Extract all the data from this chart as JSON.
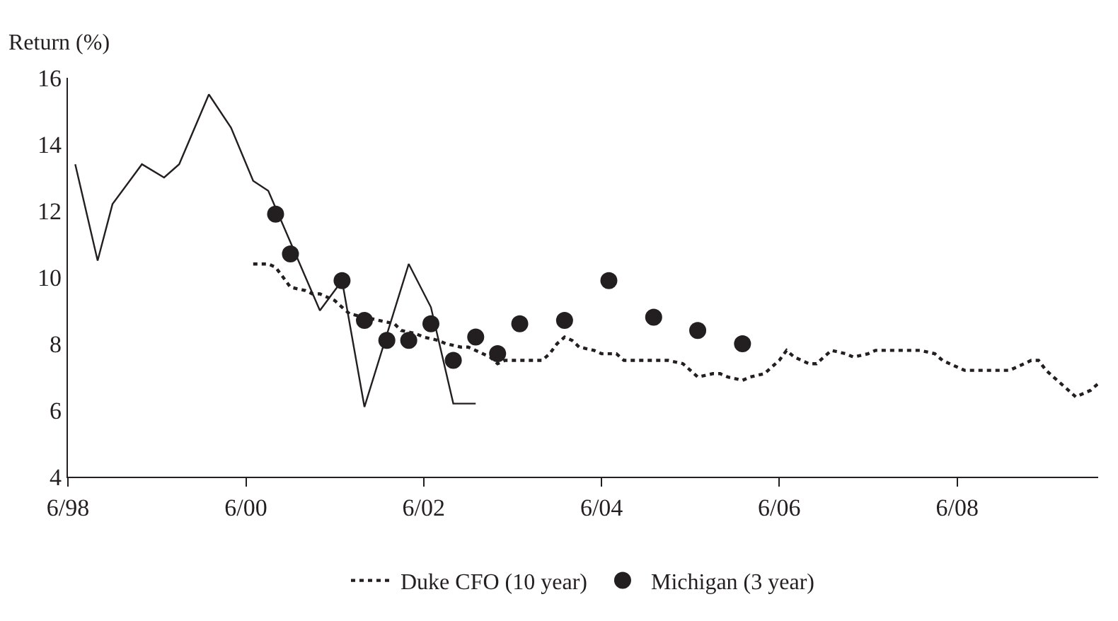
{
  "chart_data": {
    "type": "line",
    "ylabel": "Return (%)",
    "xlim": [
      "1998-06",
      "2010-01"
    ],
    "ylim": [
      4,
      16
    ],
    "xticks": [
      {
        "value": "1998-06",
        "label": "6/98"
      },
      {
        "value": "2000-06",
        "label": "6/00"
      },
      {
        "value": "2002-06",
        "label": "6/02"
      },
      {
        "value": "2004-06",
        "label": "6/04"
      },
      {
        "value": "2006-06",
        "label": "6/06"
      },
      {
        "value": "2008-06",
        "label": "6/08"
      }
    ],
    "yticks": [
      4,
      6,
      8,
      10,
      12,
      14,
      16
    ],
    "legend": "bottom",
    "series": [
      {
        "line_style": "solid",
        "color": "#231f20",
        "x": [
          "1998-07",
          "1998-10",
          "1998-12",
          "1999-04",
          "1999-07",
          "1999-09",
          "2000-01",
          "2000-04",
          "2000-07",
          "2000-09",
          "2001-04",
          "2001-07",
          "2001-10",
          "2002-04",
          "2002-07",
          "2002-10",
          "2003-01"
        ],
        "values": [
          13.4,
          10.5,
          12.2,
          13.4,
          13.0,
          13.4,
          15.5,
          14.5,
          12.9,
          12.6,
          9.0,
          9.9,
          6.1,
          10.4,
          9.1,
          6.2,
          6.2
        ]
      },
      {
        "line_style": "dotted",
        "name": "Duke CFO (10 year)",
        "color": "#231f20",
        "x": [
          "2000-07",
          "2000-09",
          "2000-10",
          "2000-11",
          "2000-12",
          "2001-02",
          "2001-03",
          "2001-04",
          "2001-06",
          "2001-07",
          "2001-08",
          "2001-10",
          "2001-12",
          "2002-02",
          "2002-03",
          "2002-05",
          "2002-06",
          "2002-08",
          "2002-09",
          "2002-11",
          "2002-12",
          "2003-01",
          "2003-03",
          "2003-04",
          "2003-05",
          "2003-07",
          "2003-08",
          "2003-10",
          "2003-11",
          "2003-12",
          "2004-01",
          "2004-02",
          "2004-03",
          "2004-05",
          "2004-06",
          "2004-08",
          "2004-09",
          "2004-11",
          "2004-12",
          "2005-02",
          "2005-03",
          "2005-05",
          "2005-06",
          "2005-07",
          "2005-09",
          "2005-10",
          "2005-11",
          "2006-01",
          "2006-02",
          "2006-04",
          "2006-05",
          "2006-06",
          "2006-07",
          "2006-08",
          "2006-10",
          "2006-11",
          "2006-12",
          "2007-01",
          "2007-03",
          "2007-04",
          "2007-06",
          "2007-07",
          "2007-09",
          "2007-10",
          "2007-12",
          "2008-01",
          "2008-03",
          "2008-04",
          "2008-05",
          "2008-07",
          "2008-08",
          "2008-10",
          "2008-11",
          "2009-01",
          "2009-02",
          "2009-04",
          "2009-05",
          "2009-06",
          "2009-07",
          "2009-08",
          "2009-09",
          "2009-10",
          "2009-12",
          "2010-01"
        ],
        "values": [
          10.4,
          10.4,
          10.3,
          10.0,
          9.7,
          9.6,
          9.5,
          9.5,
          9.3,
          9.1,
          8.9,
          8.8,
          8.7,
          8.6,
          8.4,
          8.3,
          8.2,
          8.1,
          8.0,
          7.9,
          7.9,
          7.8,
          7.6,
          7.4,
          7.5,
          7.5,
          7.5,
          7.5,
          7.7,
          8.0,
          8.2,
          8.1,
          7.9,
          7.8,
          7.7,
          7.7,
          7.5,
          7.5,
          7.5,
          7.5,
          7.5,
          7.4,
          7.2,
          7.0,
          7.1,
          7.1,
          7.0,
          6.9,
          7.0,
          7.1,
          7.3,
          7.5,
          7.8,
          7.6,
          7.4,
          7.4,
          7.6,
          7.8,
          7.7,
          7.6,
          7.7,
          7.8,
          7.8,
          7.8,
          7.8,
          7.8,
          7.7,
          7.5,
          7.4,
          7.2,
          7.2,
          7.2,
          7.2,
          7.2,
          7.3,
          7.5,
          7.5,
          7.2,
          7.0,
          6.8,
          6.6,
          6.4,
          6.6,
          6.8
        ]
      },
      {
        "type": "scatter",
        "marker": "circle",
        "name": "Michigan (3 year)",
        "color": "#231f20",
        "x": [
          "2000-10",
          "2000-12",
          "2001-07",
          "2001-10",
          "2002-01",
          "2002-04",
          "2002-07",
          "2002-10",
          "2003-01",
          "2003-04",
          "2003-07",
          "2004-01",
          "2004-07",
          "2005-01",
          "2005-07",
          "2006-01"
        ],
        "values": [
          11.9,
          10.7,
          9.9,
          8.7,
          8.1,
          8.1,
          8.6,
          7.5,
          8.2,
          7.7,
          8.6,
          8.7,
          9.9,
          8.8,
          8.4,
          8.0
        ]
      }
    ]
  }
}
